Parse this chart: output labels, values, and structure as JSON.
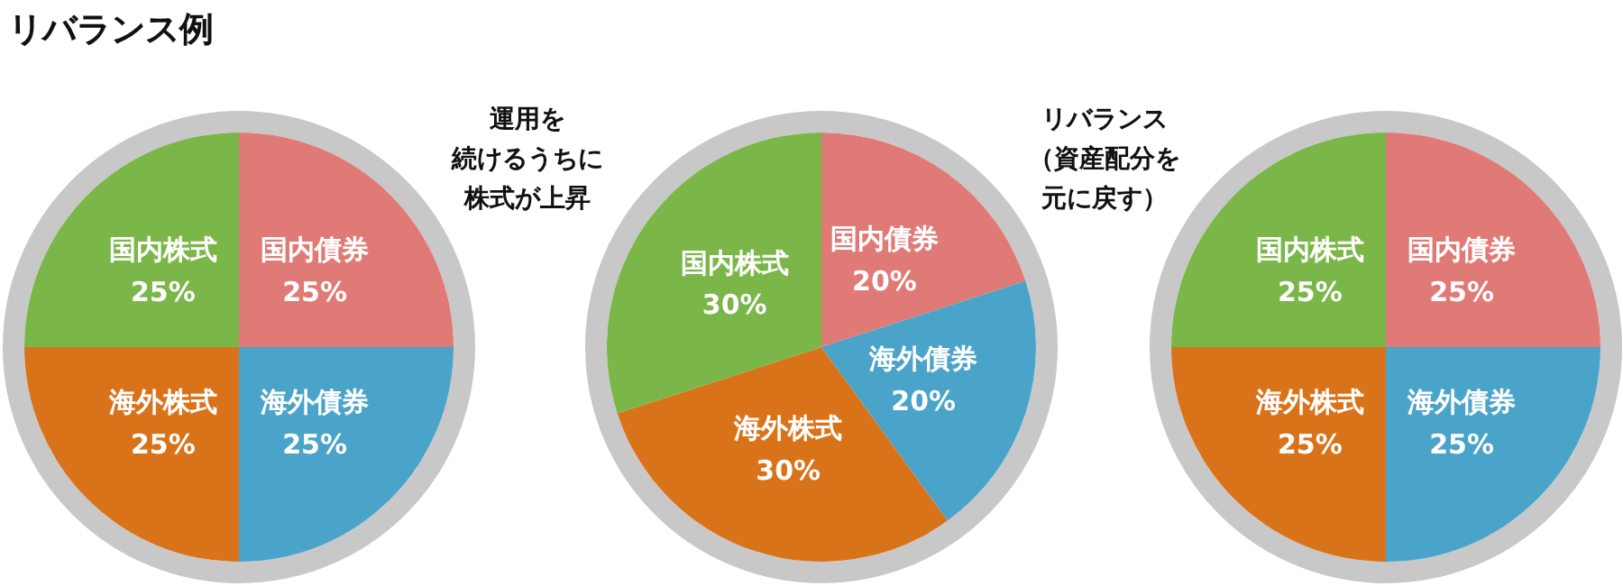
{
  "chart_data": [
    {
      "type": "pie",
      "title": "リバランス例",
      "categories": [
        "国内債券",
        "海外債券",
        "海外株式",
        "国内株式"
      ],
      "values": [
        25,
        25,
        25,
        25
      ],
      "value_labels": [
        "25%",
        "25%",
        "25%",
        "25%"
      ],
      "data_labels": true,
      "colors": [
        "#e07a76",
        "#4aa3c9",
        "#d9731a",
        "#7ab648"
      ]
    },
    {
      "type": "pie",
      "annotations": [
        "運用を",
        "続けるうちに",
        "株式が上昇"
      ],
      "categories": [
        "国内債券",
        "海外債券",
        "海外株式",
        "国内株式"
      ],
      "values": [
        20,
        20,
        30,
        30
      ],
      "value_labels": [
        "20%",
        "20%",
        "30%",
        "30%"
      ],
      "data_labels": true,
      "colors": [
        "#e07a76",
        "#4aa3c9",
        "#d9731a",
        "#7ab648"
      ]
    },
    {
      "type": "pie",
      "annotations": [
        "リバランス",
        "（資産配分を",
        "元に戻す）"
      ],
      "categories": [
        "国内債券",
        "海外債券",
        "海外株式",
        "国内株式"
      ],
      "values": [
        25,
        25,
        25,
        25
      ],
      "value_labels": [
        "25%",
        "25%",
        "25%",
        "25%"
      ],
      "data_labels": true,
      "colors": [
        "#e07a76",
        "#4aa3c9",
        "#d9731a",
        "#7ab648"
      ]
    }
  ]
}
